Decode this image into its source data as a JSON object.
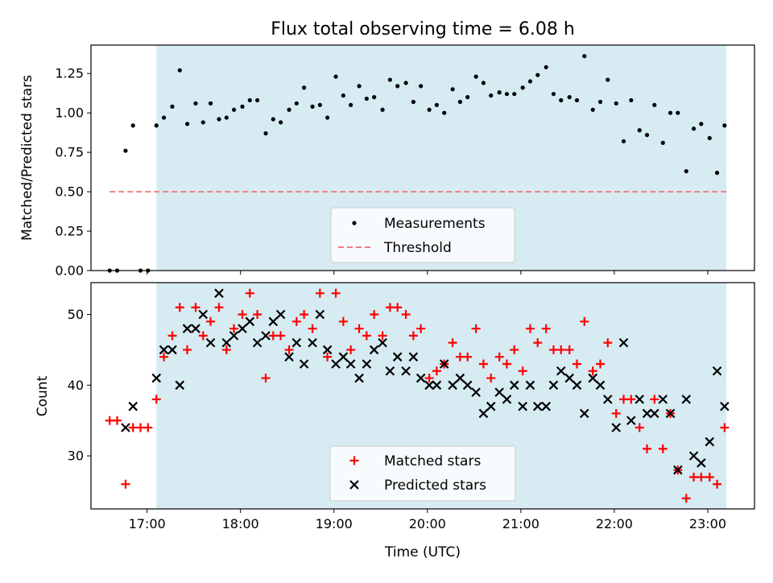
{
  "chart_data": [
    {
      "type": "scatter",
      "title": "Flux total observing time = 6.08 h",
      "xlabel": "",
      "ylabel": "Matched/Predicted stars",
      "xlim": [
        16.4,
        23.5
      ],
      "ylim": [
        0.0,
        1.43
      ],
      "yticks": [
        0.0,
        0.25,
        0.5,
        0.75,
        1.0,
        1.25
      ],
      "ytick_labels": [
        "0.00",
        "0.25",
        "0.50",
        "0.75",
        "1.00",
        "1.25"
      ],
      "observing_window": [
        17.1,
        23.2
      ],
      "threshold": {
        "name": "Threshold",
        "y": 0.5,
        "x": [
          16.6,
          23.2
        ],
        "color": "#f08080",
        "style": "dashed"
      },
      "legend": [
        "Measurements",
        "Threshold"
      ],
      "legend_position": "bottom-center",
      "series": [
        {
          "name": "Measurements",
          "color": "#000000",
          "marker": "dot",
          "x": [
            16.6,
            16.68,
            16.77,
            16.85,
            16.93,
            17.01,
            17.1,
            17.18,
            17.27,
            17.35,
            17.43,
            17.52,
            17.6,
            17.68,
            17.77,
            17.85,
            17.93,
            18.02,
            18.1,
            18.18,
            18.27,
            18.35,
            18.43,
            18.52,
            18.6,
            18.68,
            18.77,
            18.85,
            18.93,
            19.02,
            19.1,
            19.18,
            19.27,
            19.35,
            19.43,
            19.52,
            19.6,
            19.68,
            19.77,
            19.85,
            19.93,
            20.02,
            20.1,
            20.18,
            20.27,
            20.35,
            20.43,
            20.52,
            20.6,
            20.68,
            20.77,
            20.85,
            20.93,
            21.02,
            21.1,
            21.18,
            21.27,
            21.35,
            21.43,
            21.52,
            21.6,
            21.68,
            21.77,
            21.85,
            21.93,
            22.02,
            22.1,
            22.18,
            22.27,
            22.35,
            22.43,
            22.52,
            22.6,
            22.68,
            22.77,
            22.85,
            22.93,
            23.02,
            23.1,
            23.18
          ],
          "y": [
            0.0,
            0.0,
            0.76,
            0.92,
            0.0,
            0.0,
            0.92,
            0.97,
            1.04,
            1.27,
            0.93,
            1.06,
            0.94,
            1.06,
            0.96,
            0.97,
            1.02,
            1.04,
            1.08,
            1.08,
            0.87,
            0.96,
            0.94,
            1.02,
            1.06,
            1.16,
            1.04,
            1.05,
            0.97,
            1.23,
            1.11,
            1.05,
            1.17,
            1.09,
            1.1,
            1.02,
            1.21,
            1.17,
            1.19,
            1.07,
            1.17,
            1.02,
            1.05,
            1.0,
            1.15,
            1.07,
            1.1,
            1.23,
            1.19,
            1.11,
            1.13,
            1.12,
            1.12,
            1.16,
            1.2,
            1.24,
            1.29,
            1.12,
            1.08,
            1.1,
            1.08,
            1.36,
            1.02,
            1.07,
            1.21,
            1.06,
            0.82,
            1.08,
            0.89,
            0.86,
            1.05,
            0.81,
            1.0,
            1.0,
            0.63,
            0.9,
            0.93,
            0.84,
            0.62,
            0.92
          ]
        }
      ]
    },
    {
      "type": "scatter",
      "title": "",
      "xlabel": "Time (UTC)",
      "ylabel": "Count",
      "xlim": [
        16.4,
        23.5
      ],
      "ylim": [
        22.5,
        54.5
      ],
      "yticks": [
        30,
        40,
        50
      ],
      "ytick_labels": [
        "30",
        "40",
        "50"
      ],
      "xticks": [
        17,
        18,
        19,
        20,
        21,
        22,
        23
      ],
      "xtick_labels": [
        "17:00",
        "18:00",
        "19:00",
        "20:00",
        "21:00",
        "22:00",
        "23:00"
      ],
      "observing_window": [
        17.1,
        23.2
      ],
      "legend": [
        "Matched stars",
        "Predicted stars"
      ],
      "legend_position": "bottom-center",
      "x": [
        16.6,
        16.68,
        16.77,
        16.85,
        16.93,
        17.01,
        17.1,
        17.18,
        17.27,
        17.35,
        17.43,
        17.52,
        17.6,
        17.68,
        17.77,
        17.85,
        17.93,
        18.02,
        18.1,
        18.18,
        18.27,
        18.35,
        18.43,
        18.52,
        18.6,
        18.68,
        18.77,
        18.85,
        18.93,
        19.02,
        19.1,
        19.18,
        19.27,
        19.35,
        19.43,
        19.52,
        19.6,
        19.68,
        19.77,
        19.85,
        19.93,
        20.02,
        20.1,
        20.18,
        20.27,
        20.35,
        20.43,
        20.52,
        20.6,
        20.68,
        20.77,
        20.85,
        20.93,
        21.02,
        21.1,
        21.18,
        21.27,
        21.35,
        21.43,
        21.52,
        21.6,
        21.68,
        21.77,
        21.85,
        21.93,
        22.02,
        22.1,
        22.18,
        22.27,
        22.35,
        22.43,
        22.52,
        22.6,
        22.68,
        22.77,
        22.85,
        22.93,
        23.02,
        23.1,
        23.18
      ],
      "series": [
        {
          "name": "Matched stars",
          "color": "#ff0000",
          "marker": "plus",
          "values": [
            35,
            35,
            26,
            34,
            34,
            34,
            38,
            44,
            47,
            51,
            45,
            51,
            47,
            49,
            51,
            45,
            48,
            50,
            53,
            50,
            41,
            47,
            47,
            45,
            49,
            50,
            48,
            53,
            44,
            53,
            49,
            45,
            48,
            47,
            50,
            47,
            51,
            51,
            50,
            47,
            48,
            41,
            42,
            43,
            46,
            44,
            44,
            48,
            43,
            41,
            44,
            43,
            45,
            42,
            48,
            46,
            48,
            45,
            45,
            45,
            43,
            49,
            42,
            43,
            46,
            36,
            38,
            38,
            34,
            31,
            38,
            31,
            36,
            28,
            24,
            27,
            27,
            27,
            26,
            34
          ]
        },
        {
          "name": "Predicted stars",
          "color": "#000000",
          "marker": "x",
          "values": [
            null,
            null,
            34,
            37,
            null,
            null,
            41,
            45,
            45,
            40,
            48,
            48,
            50,
            46,
            53,
            46,
            47,
            48,
            49,
            46,
            47,
            49,
            50,
            44,
            46,
            43,
            46,
            50,
            45,
            43,
            44,
            43,
            41,
            43,
            45,
            46,
            42,
            44,
            42,
            44,
            41,
            40,
            40,
            43,
            40,
            41,
            40,
            39,
            36,
            37,
            39,
            38,
            40,
            37,
            40,
            37,
            37,
            40,
            42,
            41,
            40,
            36,
            41,
            40,
            38,
            34,
            46,
            35,
            38,
            36,
            36,
            38,
            36,
            28,
            38,
            30,
            29,
            32,
            42,
            37
          ]
        }
      ]
    }
  ]
}
